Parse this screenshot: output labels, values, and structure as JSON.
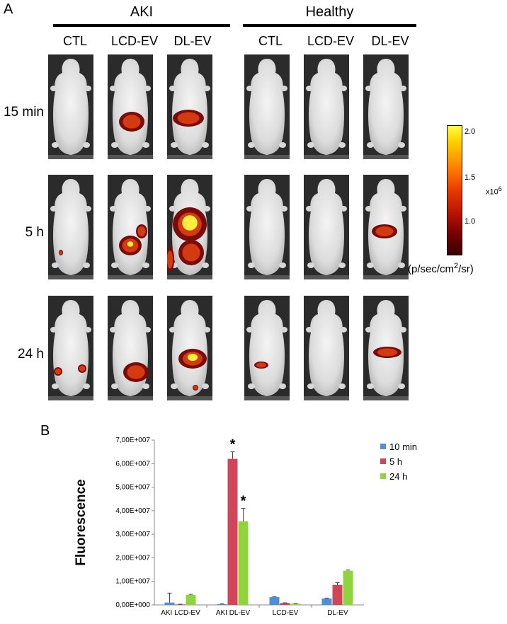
{
  "panel_a": {
    "letter": "A",
    "groups": [
      {
        "title": "AKI",
        "columns": [
          "CTL",
          "LCD-EV",
          "DL-EV"
        ]
      },
      {
        "title": "Healthy",
        "columns": [
          "CTL",
          "LCD-EV",
          "DL-EV"
        ]
      }
    ],
    "rows": [
      "15 min",
      "5 h",
      "24 h"
    ],
    "colorbar": {
      "ticks": [
        "2.0",
        "1.5",
        "1.0"
      ],
      "multiplier": "x10",
      "multiplier_exp": "6",
      "unit_prefix": "(p/sec/cm",
      "unit_exp": "2",
      "unit_suffix": "/sr)"
    }
  },
  "panel_b": {
    "letter": "B",
    "chart_data": {
      "type": "bar",
      "categories": [
        "AKI LCD-EV",
        "AKI DL-EV",
        "LCD-EV",
        "DL-EV"
      ],
      "series": [
        {
          "name": "10 min",
          "color": "#4f8fd8",
          "values": [
            1000000,
            300000,
            3300000,
            2700000
          ],
          "errors": [
            4000000,
            200000,
            200000,
            200000
          ]
        },
        {
          "name": "5 h",
          "color": "#d04558",
          "values": [
            200000,
            62000000,
            800000,
            8500000
          ],
          "errors": [
            100000,
            3000000,
            100000,
            1000000
          ]
        },
        {
          "name": "24 h",
          "color": "#8fd43c",
          "values": [
            4200000,
            35500000,
            500000,
            14500000
          ],
          "errors": [
            300000,
            5500000,
            100000,
            300000
          ]
        }
      ],
      "ylabel": "Fluorescence",
      "ylim": [
        0,
        70000000
      ],
      "yticks": [
        "0,00E+000",
        "1,00E+007",
        "2,00E+007",
        "3,00E+007",
        "4,00E+007",
        "5,00E+007",
        "6,00E+007",
        "7,00E+007"
      ],
      "legend_position": "top-right",
      "annotations": [
        "*",
        "*"
      ]
    }
  }
}
